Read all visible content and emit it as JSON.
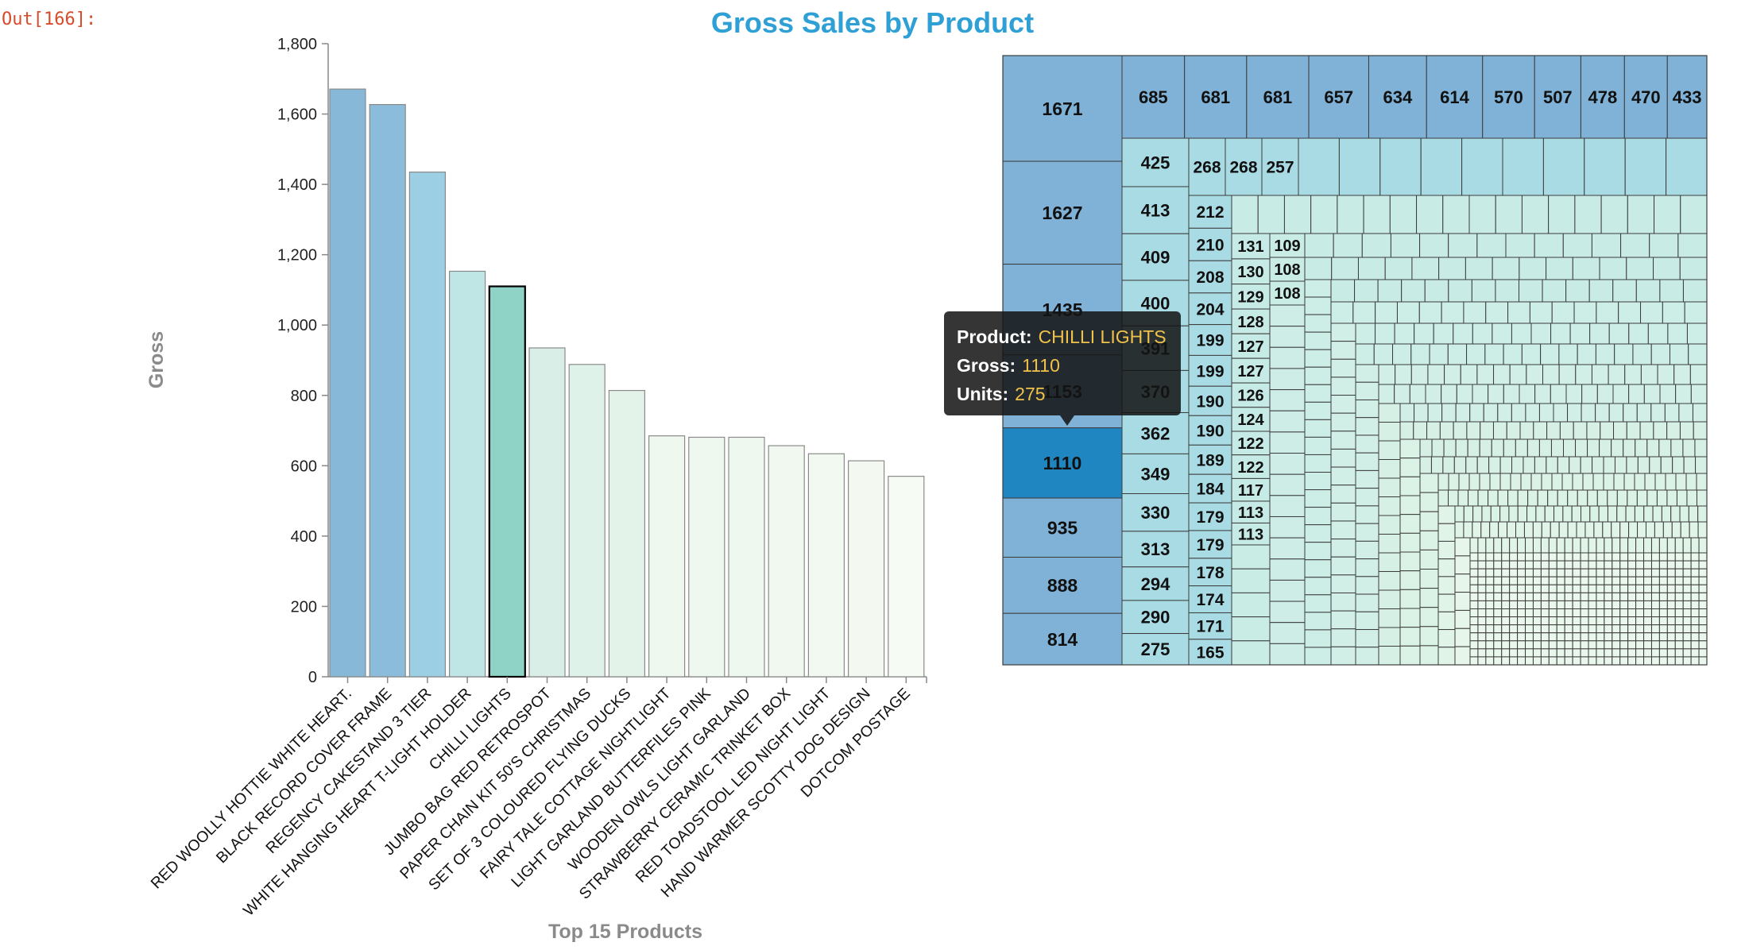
{
  "cell_prompt": "Out[166]:",
  "chart_data": [
    {
      "type": "bar",
      "title": "Gross Sales by Product",
      "xlabel": "Top 15 Products",
      "ylabel": "Gross",
      "ylim": [
        0,
        1800
      ],
      "yticks": [
        "0",
        "200",
        "400",
        "600",
        "800",
        "1,000",
        "1,200",
        "1,400",
        "1,600",
        "1,800"
      ],
      "categories": [
        "RED WOOLLY HOTTIE WHITE HEART.",
        "BLACK RECORD COVER FRAME",
        "REGENCY CAKESTAND 3 TIER",
        "WHITE HANGING HEART T-LIGHT HOLDER",
        "CHILLI LIGHTS",
        "JUMBO BAG RED RETROSPOT",
        "PAPER CHAIN KIT 50'S CHRISTMAS",
        "SET OF 3 COLOURED FLYING DUCKS",
        "FAIRY TALE COTTAGE NIGHTLIGHT",
        "LIGHT GARLAND BUTTERFILES PINK",
        "WOODEN OWLS LIGHT GARLAND",
        "STRAWBERRY CERAMIC TRINKET BOX",
        "RED TOADSTOOL LED NIGHT LIGHT",
        "HAND WARMER SCOTTY DOG DESIGN",
        "DOTCOM POSTAGE"
      ],
      "values": [
        1671,
        1627,
        1435,
        1153,
        1110,
        935,
        888,
        814,
        685,
        681,
        681,
        657,
        634,
        614,
        570
      ],
      "highlighted": "CHILLI LIGHTS",
      "colors": {
        "bars": [
          "#88b8d8",
          "#8cbcdb",
          "#9ccfe3",
          "#bfe6e5",
          "#8ed3c6",
          "#d9eee6",
          "#dff2ea",
          "#e4f3ea",
          "#eef8ee",
          "#eff8ef",
          "#eff8ef",
          "#f0f8ef",
          "#f2f9f0",
          "#f3f9f1",
          "#f6fbf3"
        ],
        "highlight_stroke": "#000000",
        "stroke": "#8a8a8a"
      }
    },
    {
      "type": "treemap",
      "columns": [
        [
          1671,
          1627,
          1435,
          1153,
          1110,
          935,
          888,
          814
        ],
        [
          425,
          413,
          409,
          400,
          391,
          370,
          362,
          349,
          330,
          313,
          294,
          290,
          275
        ],
        [
          268,
          268,
          257
        ],
        [
          212,
          210,
          208,
          204,
          199,
          199,
          190,
          190,
          189,
          184,
          179,
          179,
          178,
          174,
          171,
          165
        ],
        [
          131,
          130,
          129,
          128,
          127,
          127,
          126,
          124,
          122,
          122,
          117,
          113,
          113
        ],
        [
          109,
          108,
          108
        ]
      ],
      "top_row": [
        685,
        681,
        681,
        657,
        634,
        614,
        570,
        507,
        478,
        470,
        433
      ],
      "selected_value": 1110,
      "colors": {
        "dark": "#7fb2d6",
        "mid": "#a9dbe4",
        "light": "#d6efe6",
        "selected": "#1f86c1",
        "stroke": "#3c3c3c"
      }
    }
  ],
  "tooltip": {
    "product_label": "Product:",
    "product_value": "CHILLI LIGHTS",
    "gross_label": "Gross:",
    "gross_value": "1110",
    "units_label": "Units:",
    "units_value": "275"
  }
}
